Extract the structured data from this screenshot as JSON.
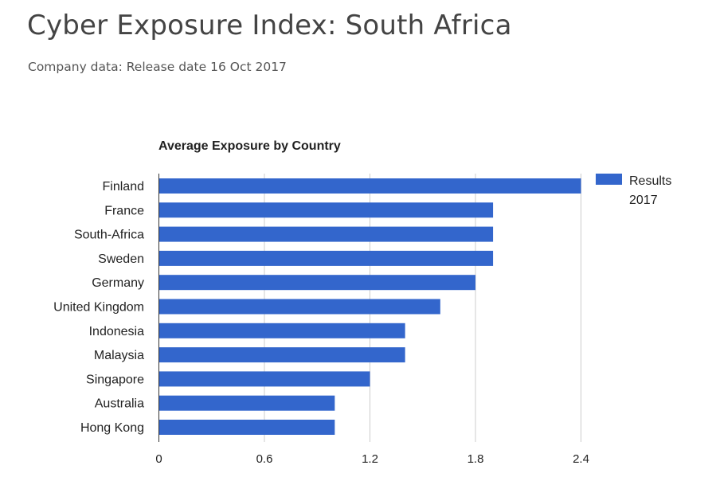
{
  "page": {
    "title": "Cyber Exposure Index: South Africa",
    "subtitle": "Company data: Release date 16 Oct 2017"
  },
  "chart_data": {
    "type": "bar",
    "orientation": "horizontal",
    "title": "Average Exposure by Country",
    "categories": [
      "Finland",
      "France",
      "South-Africa",
      "Sweden",
      "Germany",
      "United Kingdom",
      "Indonesia",
      "Malaysia",
      "Singapore",
      "Australia",
      "Hong Kong"
    ],
    "series": [
      {
        "name": "Results 2017",
        "legend_lines": [
          "Results",
          "2017"
        ],
        "color": "#3366cc",
        "values": [
          2.4,
          1.9,
          1.9,
          1.9,
          1.8,
          1.6,
          1.4,
          1.4,
          1.2,
          1.0,
          1.0
        ]
      }
    ],
    "xlim": [
      0,
      2.4
    ],
    "xticks": [
      0,
      0.6,
      1.2,
      1.8,
      2.4
    ],
    "xtick_labels": [
      "0",
      "0.6",
      "1.2",
      "1.8",
      "2.4"
    ],
    "xlabel": "",
    "ylabel": "",
    "grid": true,
    "legend_position": "right"
  }
}
